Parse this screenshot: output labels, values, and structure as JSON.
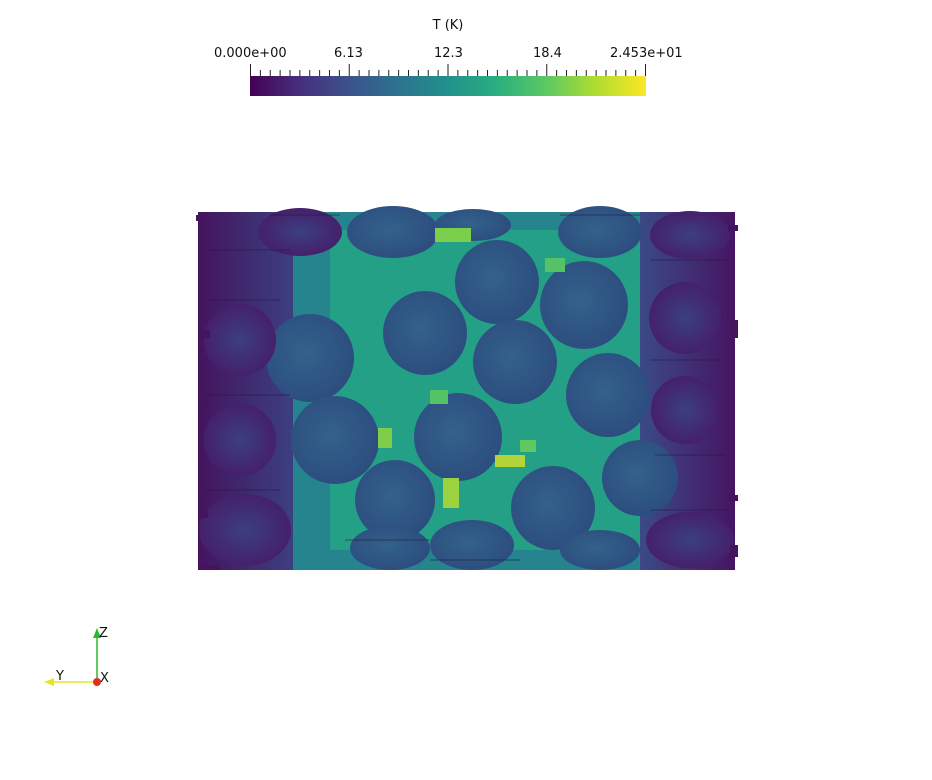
{
  "colorbar": {
    "title": "T (K)",
    "tick_labels": [
      "0.000e+00",
      "6.13",
      "12.3",
      "18.4",
      "2.453e+01"
    ],
    "min_label": "0.000e+00",
    "max_label": "2.453e+01",
    "colormap": "viridis",
    "colors": {
      "low": "#440154",
      "mid": "#21918c",
      "high": "#fde725"
    }
  },
  "orientation_axes": {
    "z_label": "Z",
    "y_label": "Y",
    "x_label": "X",
    "colors": {
      "z": "#2fb82f",
      "y": "#e6e620",
      "x": "#e03020"
    }
  },
  "scene": {
    "particle_color": "#2f5a80",
    "edge_color": "#3a2a6e",
    "pore_color": "#1f9e89",
    "hotspot_color": "#b5d43a",
    "background": "#ffffff"
  }
}
